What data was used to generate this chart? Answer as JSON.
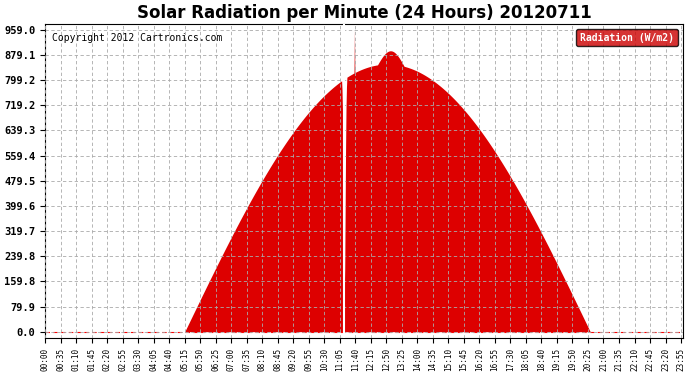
{
  "title": "Solar Radiation per Minute (24 Hours) 20120711",
  "copyright": "Copyright 2012 Cartronics.com",
  "legend_label": "Radiation (W/m2)",
  "background_color": "#ffffff",
  "plot_bg_color": "#ffffff",
  "fill_color": "#dd0000",
  "line_color": "#dd0000",
  "grid_color": "#aaaaaa",
  "ytick_labels": [
    "0.0",
    "79.9",
    "159.8",
    "239.8",
    "319.7",
    "399.6",
    "479.5",
    "559.4",
    "639.3",
    "719.2",
    "799.2",
    "879.1",
    "959.0"
  ],
  "ytick_values": [
    0.0,
    79.9,
    159.8,
    239.8,
    319.7,
    399.6,
    479.5,
    559.4,
    639.3,
    719.2,
    799.2,
    879.1,
    959.0
  ],
  "ymax": 959.0,
  "n_minutes": 1440
}
